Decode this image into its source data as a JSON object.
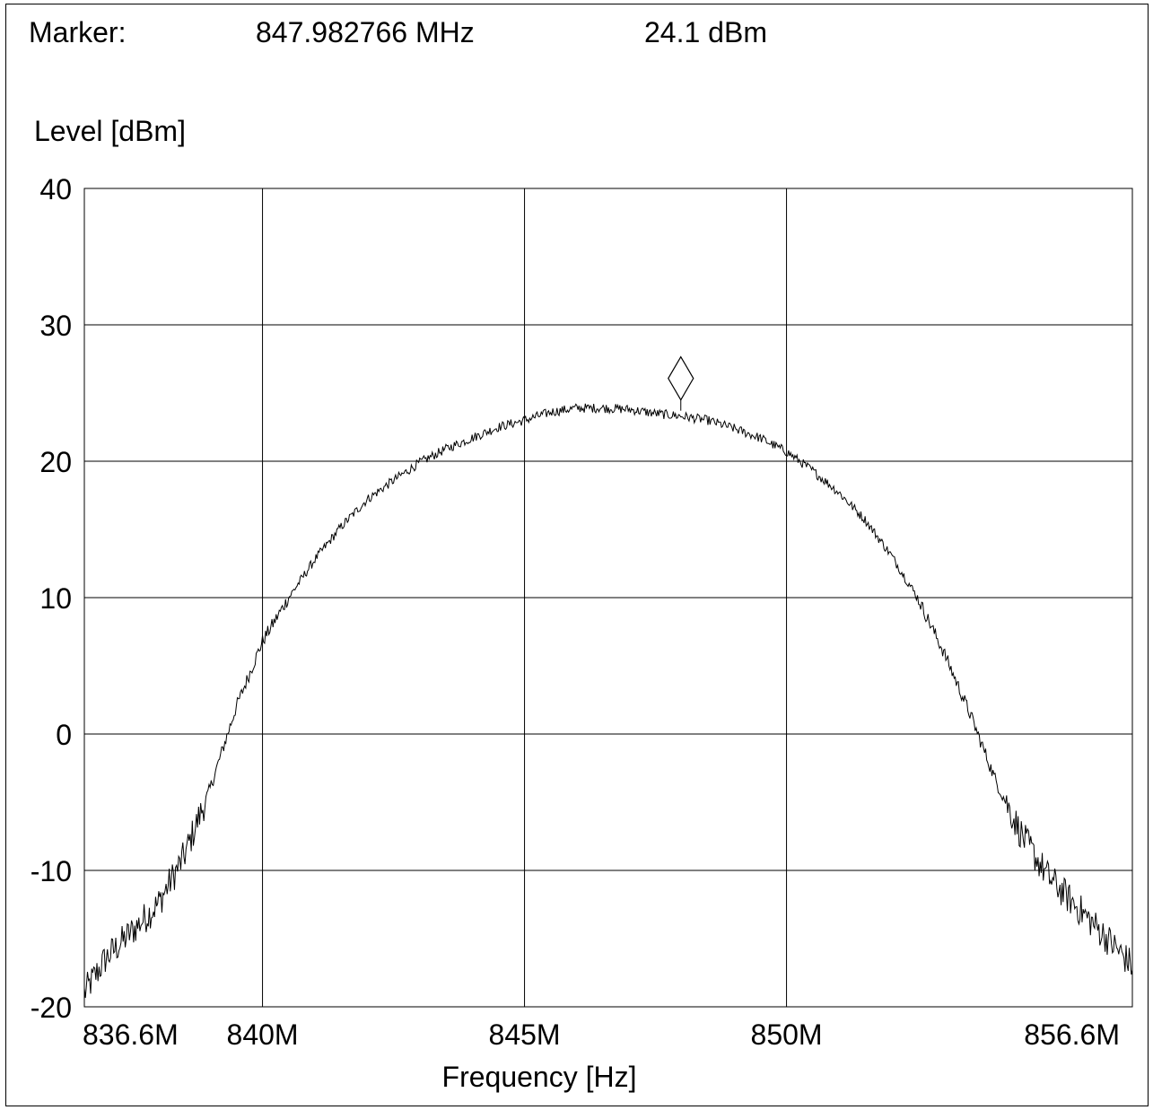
{
  "marker": {
    "label": "Marker:",
    "frequency": "847.982766 MHz",
    "level": "24.1 dBm"
  },
  "chart_data": {
    "type": "line",
    "title": "",
    "xlabel": "Frequency [Hz]",
    "ylabel": "Level [dBm]",
    "xlim": [
      836.6,
      856.6
    ],
    "ylim": [
      -20,
      40
    ],
    "grid": true,
    "x_unit": "MHz",
    "x_ticks": [
      {
        "value": 836.6,
        "label": "836.6M"
      },
      {
        "value": 840,
        "label": "840M"
      },
      {
        "value": 845,
        "label": "845M"
      },
      {
        "value": 850,
        "label": "850M"
      },
      {
        "value": 856.6,
        "label": "856.6M"
      }
    ],
    "y_ticks": [
      {
        "value": 40,
        "label": "40"
      },
      {
        "value": 30,
        "label": "30"
      },
      {
        "value": 20,
        "label": "20"
      },
      {
        "value": 10,
        "label": "10"
      },
      {
        "value": 0,
        "label": "0"
      },
      {
        "value": -10,
        "label": "-10"
      },
      {
        "value": -20,
        "label": "-20"
      }
    ],
    "series": [
      {
        "x": [
          836.6,
          837.0,
          837.5,
          838.0,
          838.5,
          839.0,
          839.5,
          840.0,
          840.5,
          841.0,
          841.5,
          842.0,
          842.5,
          843.0,
          843.5,
          844.0,
          844.5,
          845.0,
          845.5,
          846.0,
          846.5,
          847.0,
          847.5,
          848.0,
          848.5,
          849.0,
          849.5,
          850.0,
          850.5,
          851.0,
          851.5,
          852.0,
          852.5,
          853.0,
          853.5,
          854.0,
          854.5,
          855.0,
          855.5,
          856.0,
          856.6
        ],
        "y": [
          -19.0,
          -16.5,
          -14.5,
          -12.5,
          -9.0,
          -4.0,
          2.0,
          6.8,
          10.0,
          12.8,
          15.2,
          17.2,
          18.6,
          19.9,
          20.9,
          21.7,
          22.5,
          23.0,
          23.6,
          23.9,
          23.9,
          23.8,
          23.5,
          23.3,
          23.0,
          22.4,
          21.7,
          20.7,
          19.3,
          17.7,
          15.7,
          13.1,
          10.0,
          6.0,
          1.5,
          -3.5,
          -7.5,
          -10.5,
          -12.5,
          -14.5,
          -17.0
        ]
      }
    ],
    "marker_point": {
      "x": 847.982766,
      "y": 24.1
    }
  }
}
